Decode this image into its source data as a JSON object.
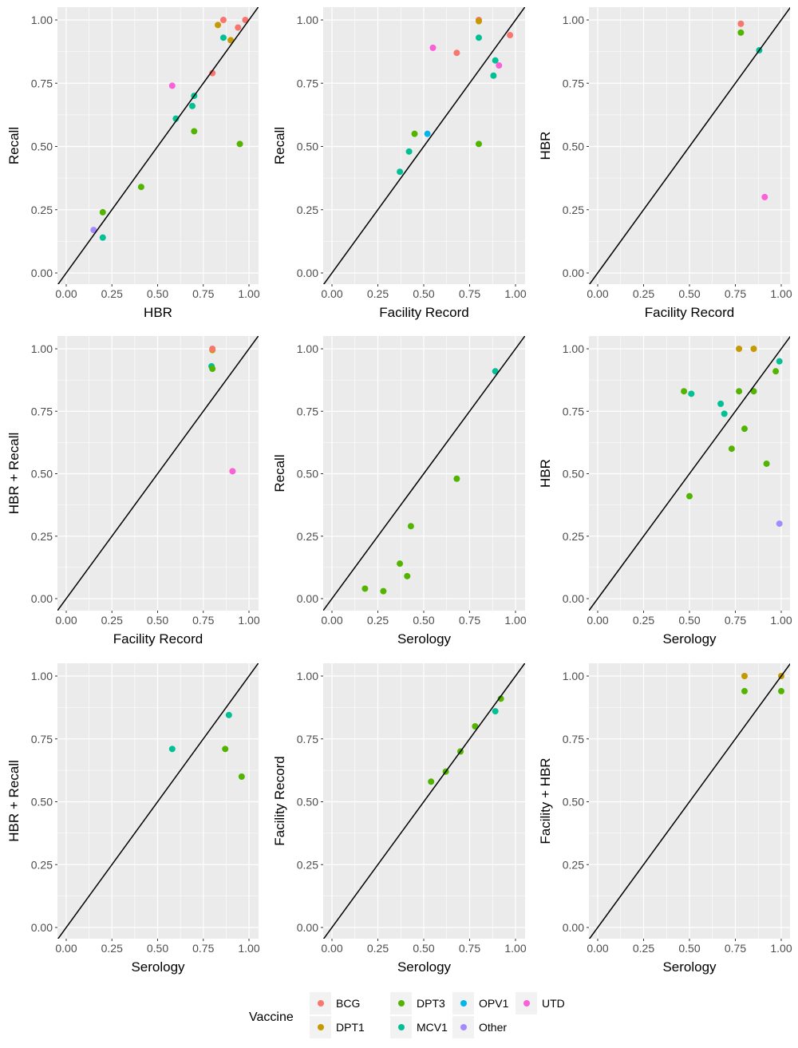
{
  "legend": {
    "title": "Vaccine",
    "entries": [
      {
        "name": "BCG",
        "color": "#F8766D"
      },
      {
        "name": "DPT1",
        "color": "#C49A00"
      },
      {
        "name": "DPT3",
        "color": "#53B400"
      },
      {
        "name": "MCV1",
        "color": "#00C094"
      },
      {
        "name": "OPV1",
        "color": "#00B6EB"
      },
      {
        "name": "Other",
        "color": "#A58AFF"
      },
      {
        "name": "UTD",
        "color": "#FB61D7"
      }
    ]
  },
  "chart_data": [
    {
      "type": "scatter",
      "panel": "row1-col1",
      "xlabel": "HBR",
      "ylabel": "Recall",
      "xlim": [
        0,
        1
      ],
      "ylim": [
        0,
        1
      ],
      "ticks": [
        "0.00",
        "0.25",
        "0.50",
        "0.75",
        "1.00"
      ],
      "reference_line": "y = x",
      "points": [
        {
          "x": 0.86,
          "y": 1.0,
          "vaccine": "BCG"
        },
        {
          "x": 0.98,
          "y": 1.0,
          "vaccine": "BCG"
        },
        {
          "x": 0.94,
          "y": 0.97,
          "vaccine": "BCG"
        },
        {
          "x": 0.8,
          "y": 0.79,
          "vaccine": "BCG"
        },
        {
          "x": 0.83,
          "y": 0.98,
          "vaccine": "DPT1"
        },
        {
          "x": 0.9,
          "y": 0.92,
          "vaccine": "DPT1"
        },
        {
          "x": 0.86,
          "y": 0.93,
          "vaccine": "MCV1"
        },
        {
          "x": 0.7,
          "y": 0.7,
          "vaccine": "MCV1"
        },
        {
          "x": 0.69,
          "y": 0.66,
          "vaccine": "MCV1"
        },
        {
          "x": 0.6,
          "y": 0.61,
          "vaccine": "MCV1"
        },
        {
          "x": 0.2,
          "y": 0.14,
          "vaccine": "MCV1"
        },
        {
          "x": 0.7,
          "y": 0.56,
          "vaccine": "DPT3"
        },
        {
          "x": 0.95,
          "y": 0.51,
          "vaccine": "DPT3"
        },
        {
          "x": 0.41,
          "y": 0.34,
          "vaccine": "DPT3"
        },
        {
          "x": 0.2,
          "y": 0.24,
          "vaccine": "DPT3"
        },
        {
          "x": 0.58,
          "y": 0.74,
          "vaccine": "UTD"
        },
        {
          "x": 0.15,
          "y": 0.17,
          "vaccine": "Other"
        }
      ]
    },
    {
      "type": "scatter",
      "panel": "row1-col2",
      "xlabel": "Facility Record",
      "ylabel": "Recall",
      "xlim": [
        0,
        1
      ],
      "ylim": [
        0,
        1
      ],
      "ticks": [
        "0.00",
        "0.25",
        "0.50",
        "0.75",
        "1.00"
      ],
      "reference_line": "y = x",
      "points": [
        {
          "x": 0.8,
          "y": 1.0,
          "vaccine": "BCG"
        },
        {
          "x": 0.8,
          "y": 0.995,
          "vaccine": "DPT1"
        },
        {
          "x": 0.97,
          "y": 0.94,
          "vaccine": "BCG"
        },
        {
          "x": 0.68,
          "y": 0.87,
          "vaccine": "BCG"
        },
        {
          "x": 0.8,
          "y": 0.93,
          "vaccine": "MCV1"
        },
        {
          "x": 0.89,
          "y": 0.84,
          "vaccine": "MCV1"
        },
        {
          "x": 0.88,
          "y": 0.78,
          "vaccine": "MCV1"
        },
        {
          "x": 0.42,
          "y": 0.48,
          "vaccine": "MCV1"
        },
        {
          "x": 0.37,
          "y": 0.4,
          "vaccine": "MCV1"
        },
        {
          "x": 0.55,
          "y": 0.89,
          "vaccine": "UTD"
        },
        {
          "x": 0.91,
          "y": 0.82,
          "vaccine": "UTD"
        },
        {
          "x": 0.45,
          "y": 0.55,
          "vaccine": "DPT3"
        },
        {
          "x": 0.8,
          "y": 0.51,
          "vaccine": "DPT3"
        },
        {
          "x": 0.52,
          "y": 0.55,
          "vaccine": "OPV1"
        }
      ]
    },
    {
      "type": "scatter",
      "panel": "row1-col3",
      "xlabel": "Facility Record",
      "ylabel": "HBR",
      "xlim": [
        0,
        1
      ],
      "ylim": [
        0,
        1
      ],
      "ticks": [
        "0.00",
        "0.25",
        "0.50",
        "0.75",
        "1.00"
      ],
      "reference_line": "y = x",
      "points": [
        {
          "x": 0.78,
          "y": 0.985,
          "vaccine": "BCG"
        },
        {
          "x": 0.78,
          "y": 0.95,
          "vaccine": "DPT3"
        },
        {
          "x": 0.88,
          "y": 0.88,
          "vaccine": "MCV1"
        },
        {
          "x": 0.91,
          "y": 0.3,
          "vaccine": "UTD"
        }
      ]
    },
    {
      "type": "scatter",
      "panel": "row2-col1",
      "xlabel": "Facility Record",
      "ylabel": "HBR + Recall",
      "xlim": [
        0,
        1
      ],
      "ylim": [
        0,
        1
      ],
      "ticks": [
        "0.00",
        "0.25",
        "0.50",
        "0.75",
        "1.00"
      ],
      "reference_line": "y = x",
      "points": [
        {
          "x": 0.8,
          "y": 0.995,
          "vaccine": "DPT1"
        },
        {
          "x": 0.8,
          "y": 1.0,
          "vaccine": "BCG"
        },
        {
          "x": 0.795,
          "y": 0.93,
          "vaccine": "MCV1"
        },
        {
          "x": 0.8,
          "y": 0.92,
          "vaccine": "DPT3"
        },
        {
          "x": 0.91,
          "y": 0.51,
          "vaccine": "UTD"
        }
      ]
    },
    {
      "type": "scatter",
      "panel": "row2-col2",
      "xlabel": "Serology",
      "ylabel": "Recall",
      "xlim": [
        0,
        1
      ],
      "ylim": [
        0,
        1
      ],
      "ticks": [
        "0.00",
        "0.25",
        "0.50",
        "0.75",
        "1.00"
      ],
      "reference_line": "y = x",
      "points": [
        {
          "x": 0.89,
          "y": 0.91,
          "vaccine": "MCV1"
        },
        {
          "x": 0.68,
          "y": 0.48,
          "vaccine": "DPT3"
        },
        {
          "x": 0.43,
          "y": 0.29,
          "vaccine": "DPT3"
        },
        {
          "x": 0.37,
          "y": 0.14,
          "vaccine": "DPT3"
        },
        {
          "x": 0.41,
          "y": 0.09,
          "vaccine": "DPT3"
        },
        {
          "x": 0.18,
          "y": 0.04,
          "vaccine": "DPT3"
        },
        {
          "x": 0.28,
          "y": 0.03,
          "vaccine": "DPT3"
        }
      ]
    },
    {
      "type": "scatter",
      "panel": "row2-col3",
      "xlabel": "Serology",
      "ylabel": "HBR",
      "xlim": [
        0,
        1
      ],
      "ylim": [
        0,
        1
      ],
      "ticks": [
        "0.00",
        "0.25",
        "0.50",
        "0.75",
        "1.00"
      ],
      "reference_line": "y = x",
      "points": [
        {
          "x": 0.77,
          "y": 1.0,
          "vaccine": "DPT1"
        },
        {
          "x": 0.85,
          "y": 1.0,
          "vaccine": "DPT1"
        },
        {
          "x": 0.99,
          "y": 0.95,
          "vaccine": "MCV1"
        },
        {
          "x": 0.51,
          "y": 0.82,
          "vaccine": "MCV1"
        },
        {
          "x": 0.67,
          "y": 0.78,
          "vaccine": "MCV1"
        },
        {
          "x": 0.69,
          "y": 0.74,
          "vaccine": "MCV1"
        },
        {
          "x": 0.97,
          "y": 0.91,
          "vaccine": "DPT3"
        },
        {
          "x": 0.47,
          "y": 0.83,
          "vaccine": "DPT3"
        },
        {
          "x": 0.77,
          "y": 0.83,
          "vaccine": "DPT3"
        },
        {
          "x": 0.85,
          "y": 0.83,
          "vaccine": "DPT3"
        },
        {
          "x": 0.8,
          "y": 0.68,
          "vaccine": "DPT3"
        },
        {
          "x": 0.73,
          "y": 0.6,
          "vaccine": "DPT3"
        },
        {
          "x": 0.92,
          "y": 0.54,
          "vaccine": "DPT3"
        },
        {
          "x": 0.5,
          "y": 0.41,
          "vaccine": "DPT3"
        },
        {
          "x": 0.99,
          "y": 0.3,
          "vaccine": "Other"
        }
      ]
    },
    {
      "type": "scatter",
      "panel": "row3-col1",
      "xlabel": "Serology",
      "ylabel": "HBR + Recall",
      "xlim": [
        0,
        1
      ],
      "ylim": [
        0,
        1
      ],
      "ticks": [
        "0.00",
        "0.25",
        "0.50",
        "0.75",
        "1.00"
      ],
      "reference_line": "y = x",
      "points": [
        {
          "x": 0.89,
          "y": 0.845,
          "vaccine": "MCV1"
        },
        {
          "x": 0.58,
          "y": 0.71,
          "vaccine": "MCV1"
        },
        {
          "x": 0.87,
          "y": 0.71,
          "vaccine": "DPT3"
        },
        {
          "x": 0.96,
          "y": 0.6,
          "vaccine": "DPT3"
        }
      ]
    },
    {
      "type": "scatter",
      "panel": "row3-col2",
      "xlabel": "Serology",
      "ylabel": "Facility Record",
      "xlim": [
        0,
        1
      ],
      "ylim": [
        0,
        1
      ],
      "ticks": [
        "0.00",
        "0.25",
        "0.50",
        "0.75",
        "1.00"
      ],
      "reference_line": "y = x",
      "points": [
        {
          "x": 0.92,
          "y": 0.91,
          "vaccine": "DPT3"
        },
        {
          "x": 0.89,
          "y": 0.86,
          "vaccine": "MCV1"
        },
        {
          "x": 0.78,
          "y": 0.8,
          "vaccine": "DPT3"
        },
        {
          "x": 0.7,
          "y": 0.7,
          "vaccine": "DPT3"
        },
        {
          "x": 0.62,
          "y": 0.62,
          "vaccine": "DPT3"
        },
        {
          "x": 0.54,
          "y": 0.58,
          "vaccine": "DPT3"
        }
      ]
    },
    {
      "type": "scatter",
      "panel": "row3-col3",
      "xlabel": "Serology",
      "ylabel": "Facility + HBR",
      "xlim": [
        0,
        1
      ],
      "ylim": [
        0,
        1
      ],
      "ticks": [
        "0.00",
        "0.25",
        "0.50",
        "0.75",
        "1.00"
      ],
      "reference_line": "y = x",
      "points": [
        {
          "x": 0.8,
          "y": 1.0,
          "vaccine": "DPT1"
        },
        {
          "x": 1.0,
          "y": 1.0,
          "vaccine": "DPT1"
        },
        {
          "x": 0.8,
          "y": 0.94,
          "vaccine": "DPT3"
        },
        {
          "x": 1.0,
          "y": 0.94,
          "vaccine": "DPT3"
        }
      ]
    }
  ]
}
